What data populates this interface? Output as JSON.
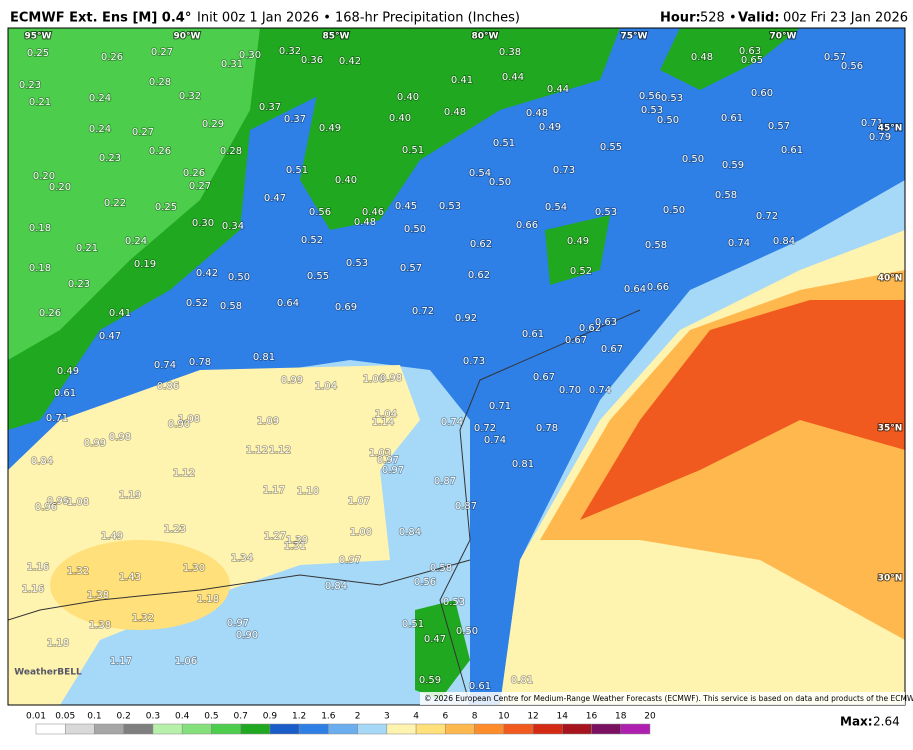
{
  "header": {
    "model": "ECMWF Ext. Ens [M] 0.4°",
    "info": "Init 00z 1 Jan 2026 • 168-hr Precipitation (Inches)",
    "hour_label": "Hour:",
    "hour": "528 •",
    "valid_label": "Valid:",
    "valid": "00z Fri 23 Jan 2026"
  },
  "map": {
    "lon_labels": [
      "95°W",
      "90°W",
      "85°W",
      "80°W",
      "75°W",
      "70°W"
    ],
    "lat_labels": [
      "45°N",
      "40°N",
      "35°N",
      "30°N"
    ],
    "labels": [
      "0.25",
      "0.26",
      "0.27",
      "0.28",
      "0.32",
      "0.31",
      "0.30",
      "0.32",
      "0.36",
      "0.42",
      "0.38",
      "0.44",
      "0.41",
      "0.44",
      "0.48",
      "0.63",
      "0.65",
      "0.57",
      "0.56",
      "0.23",
      "0.21",
      "0.24",
      "0.27",
      "0.29",
      "0.24",
      "0.26",
      "0.28",
      "0.23",
      "0.26",
      "0.27",
      "0.37",
      "0.37",
      "0.49",
      "0.40",
      "0.40",
      "0.48",
      "0.48",
      "0.49",
      "0.51",
      "0.51",
      "0.56",
      "0.53",
      "0.53",
      "0.50",
      "0.60",
      "0.61",
      "0.57",
      "0.61",
      "0.55",
      "0.50",
      "0.59",
      "0.71",
      "0.79",
      "0.40",
      "0.51",
      "0.54",
      "0.50",
      "0.73",
      "0.47",
      "0.56",
      "0.46",
      "0.45",
      "0.53",
      "0.48",
      "0.50",
      "0.54",
      "0.53",
      "0.66",
      "0.50",
      "0.58",
      "0.72",
      "0.74",
      "0.84",
      "0.20",
      "0.20",
      "0.22",
      "0.25",
      "0.30",
      "0.34",
      "0.18",
      "0.24",
      "0.21",
      "0.19",
      "0.18",
      "0.23",
      "0.52",
      "0.62",
      "0.49",
      "0.58",
      "0.42",
      "0.50",
      "0.55",
      "0.53",
      "0.57",
      "0.62",
      "0.52",
      "0.26",
      "0.41",
      "0.52",
      "0.58",
      "0.64",
      "0.69",
      "0.72",
      "0.92",
      "0.64",
      "0.66",
      "0.47",
      "0.61",
      "0.62",
      "0.63",
      "0.67",
      "0.67",
      "0.74",
      "0.78",
      "0.81",
      "0.73",
      "0.49",
      "0.61",
      "0.86",
      "0.99",
      "1.04",
      "1.00",
      "0.98",
      "0.67",
      "0.70",
      "0.74",
      "0.71",
      "1.08",
      "0.90",
      "1.09",
      "1.04",
      "1.14",
      "0.74",
      "0.72",
      "0.74",
      "0.71",
      "0.78",
      "0.99",
      "0.98",
      "0.84",
      "1.12",
      "1.12",
      "1.03",
      "0.97",
      "0.97",
      "0.81",
      "1.12",
      "0.87",
      "1.17",
      "1.10",
      "1.19",
      "0.99",
      "0.96",
      "1.08",
      "1.07",
      "0.87",
      "1.23",
      "1.49",
      "1.27",
      "1.30",
      "1.31",
      "1.00",
      "0.84",
      "1.34",
      "0.97",
      "1.30",
      "1.16",
      "1.32",
      "1.43",
      "0.58",
      "1.16",
      "1.38",
      "0.84",
      "0.56",
      "1.18",
      "0.53",
      "1.32",
      "1.38",
      "0.97",
      "0.51",
      "0.50",
      "0.90",
      "0.47",
      "1.18",
      "1.17",
      "1.06",
      "0.59",
      "0.81",
      "0.61"
    ],
    "logo": "WeatherBELL",
    "copyright": "© 2026 European Centre for Medium-Range Weather Forecasts (ECMWF). This service is based on data and products of the ECMWF."
  },
  "colorbar": {
    "labels": [
      "0.01",
      "0.05",
      "0.1",
      "0.2",
      "0.3",
      "0.4",
      "0.5",
      "0.7",
      "0.9",
      "1.2",
      "1.6",
      "2",
      "3",
      "4",
      "6",
      "8",
      "10",
      "12",
      "14",
      "16",
      "18",
      "20"
    ]
  },
  "max_label": "Max:",
  "max_value": "2.64"
}
